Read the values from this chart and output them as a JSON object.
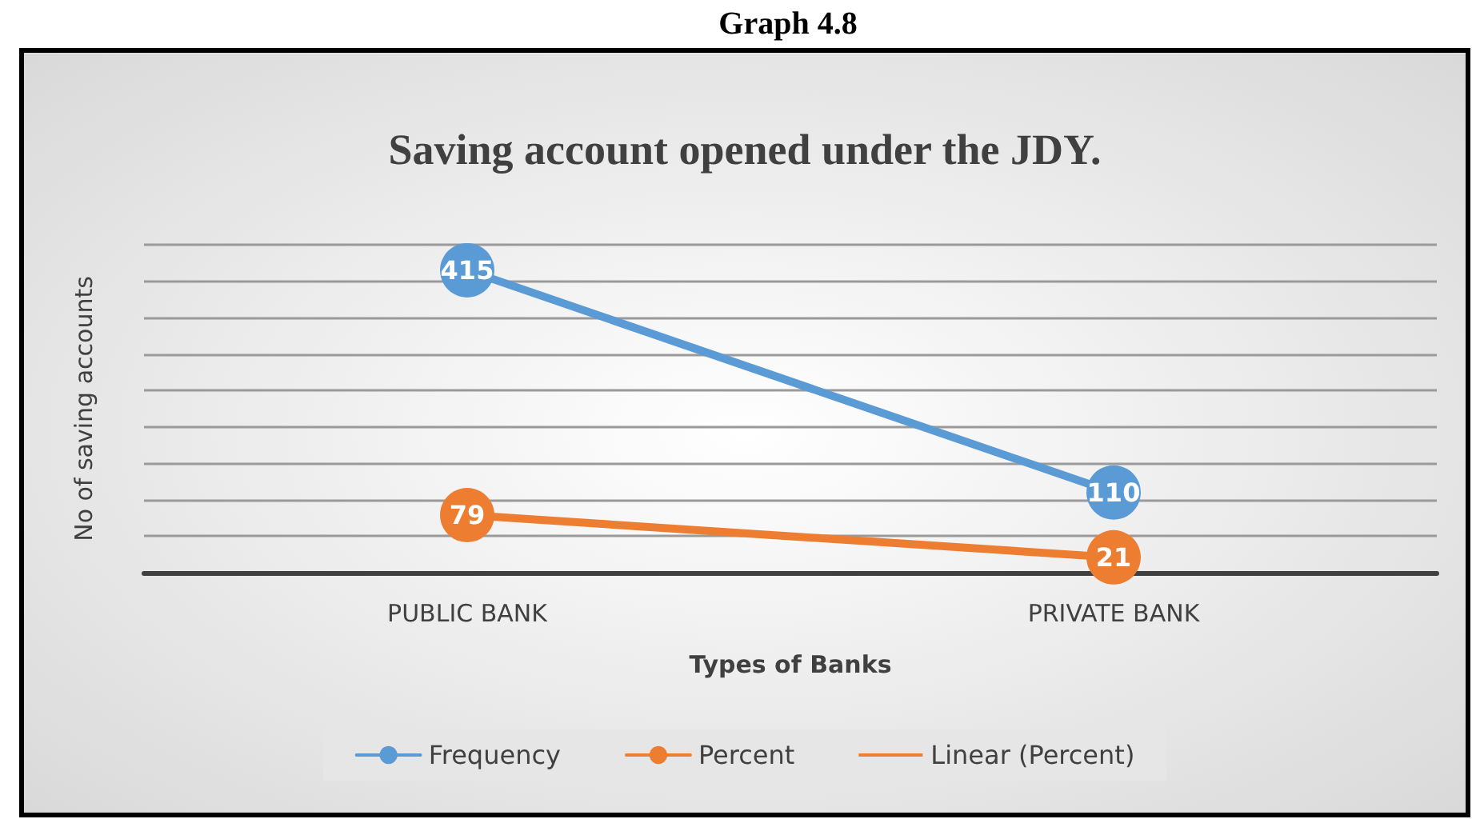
{
  "chart_data": {
    "type": "line",
    "title": "Saving account opened under the JDY.",
    "annotations": [
      "Graph 4.8"
    ],
    "xlabel": "Types of Banks",
    "ylabel": "No of saving accounts",
    "categories": [
      "PUBLIC BANK",
      "PRIVATE BANK"
    ],
    "series": [
      {
        "name": "Frequency",
        "color": "#5b9bd5",
        "values": [
          415,
          110
        ]
      },
      {
        "name": "Percent",
        "color": "#ed7d31",
        "values": [
          79,
          21
        ]
      },
      {
        "name": "Linear (Percent)",
        "color": "#ed7d31",
        "values": [
          null,
          null
        ],
        "marker": "none"
      }
    ],
    "ylim": [
      0,
      450
    ],
    "yticks": [
      {
        "value": 0,
        "label": null
      },
      {
        "value": 50,
        "label": null
      },
      {
        "value": 100,
        "label": null
      },
      {
        "value": 150,
        "label": null
      },
      {
        "value": 200,
        "label": null
      },
      {
        "value": 250,
        "label": null
      },
      {
        "value": 300,
        "label": null
      },
      {
        "value": 350,
        "label": null
      },
      {
        "value": 400,
        "label": null
      },
      {
        "value": 450,
        "label": null
      }
    ],
    "tick_labels": "x",
    "grid": "y",
    "legend": "bottom",
    "marker": "circle",
    "line_style": "solid",
    "data_labels": true
  }
}
